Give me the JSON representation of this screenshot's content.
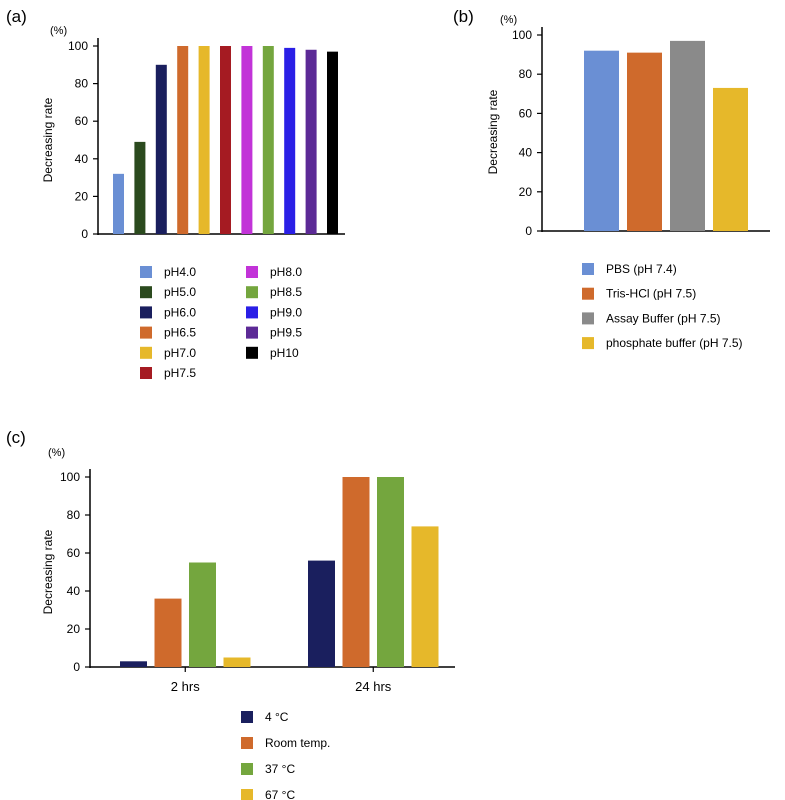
{
  "chart_data": [
    {
      "type": "bar",
      "panel_label": "(a)",
      "unit_label": "(%)",
      "ylabel": "Decreasing rate",
      "xlabel": "",
      "ylim": [
        0,
        100
      ],
      "yticks": [
        "0",
        "20",
        "40",
        "60",
        "80",
        "100"
      ],
      "categories": [
        "pH4.0",
        "pH5.0",
        "pH6.0",
        "pH6.5",
        "pH7.0",
        "pH7.5",
        "pH8.0",
        "pH8.5",
        "pH9.0",
        "pH9.5",
        "pH10"
      ],
      "values": [
        32,
        49,
        90,
        100,
        100,
        100,
        100,
        100,
        99,
        98,
        97
      ],
      "colors": [
        "#6a8fd4",
        "#2b4a1e",
        "#1a1f5e",
        "#cf6a2c",
        "#e6b82a",
        "#a51b22",
        "#c233d8",
        "#74a63e",
        "#2a1fe6",
        "#5c2a96",
        "#000000"
      ],
      "legend": [
        "pH4.0",
        "pH5.0",
        "pH6.0",
        "pH6.5",
        "pH7.0",
        "pH7.5",
        "pH8.0",
        "pH8.5",
        "pH9.0",
        "pH9.5",
        "pH10"
      ],
      "legend_position": "bottom"
    },
    {
      "type": "bar",
      "panel_label": "(b)",
      "unit_label": "(%)",
      "ylabel": "Decreasing rate",
      "xlabel": "",
      "ylim": [
        0,
        100
      ],
      "yticks": [
        "0",
        "20",
        "40",
        "60",
        "80",
        "100"
      ],
      "categories": [
        "PBS (pH 7.4)",
        "Tris-HCl (pH 7.5)",
        "Assay Buffer (pH 7.5)",
        "phosphate buffer (pH 7.5)"
      ],
      "values": [
        92,
        91,
        97,
        73
      ],
      "colors": [
        "#6a8fd4",
        "#cf6a2c",
        "#8a8a8a",
        "#e6b82a"
      ],
      "legend": [
        "PBS (pH 7.4)",
        "Tris-HCl (pH 7.5)",
        "Assay Buffer (pH 7.5)",
        "phosphate buffer (pH 7.5)"
      ],
      "legend_position": "bottom"
    },
    {
      "type": "bar",
      "panel_label": "(c)",
      "unit_label": "(%)",
      "ylabel": "Decreasing rate",
      "xlabel": "",
      "ylim": [
        0,
        100
      ],
      "yticks": [
        "0",
        "20",
        "40",
        "60",
        "80",
        "100"
      ],
      "categories": [
        "2 hrs",
        "24 hrs"
      ],
      "series": [
        {
          "name": "4 °C",
          "values": [
            3,
            56
          ],
          "color": "#1a1f5e"
        },
        {
          "name": "Room temp.",
          "values": [
            36,
            100
          ],
          "color": "#cf6a2c"
        },
        {
          "name": "37 °C",
          "values": [
            55,
            100
          ],
          "color": "#74a63e"
        },
        {
          "name": "67 °C",
          "values": [
            5,
            74
          ],
          "color": "#e6b82a"
        }
      ],
      "legend_position": "bottom"
    }
  ]
}
